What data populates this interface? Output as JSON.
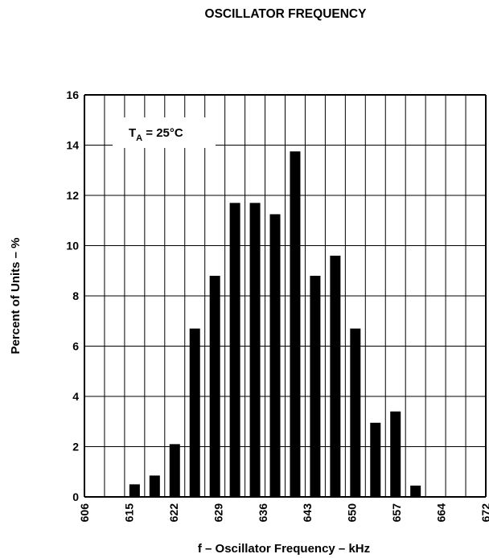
{
  "chart_data": {
    "type": "bar",
    "title": "OSCILLATOR FREQUENCY",
    "xlabel": "f – Oscillator Frequency – kHz",
    "ylabel": "Percent of Units  – %",
    "annotation": {
      "main": "T",
      "sub": "A",
      "rest": " = 25°C"
    },
    "x_tick_labels": [
      "606",
      "615",
      "622",
      "629",
      "636",
      "643",
      "650",
      "657",
      "664",
      "672"
    ],
    "ylim": [
      0,
      16
    ],
    "y_ticks": [
      0,
      2,
      4,
      6,
      8,
      10,
      12,
      14,
      16
    ],
    "grid": true,
    "bin_count": 20,
    "bins": [
      {
        "bin": 1,
        "value": 0
      },
      {
        "bin": 2,
        "value": 0
      },
      {
        "bin": 3,
        "value": 0.5
      },
      {
        "bin": 4,
        "value": 0.85
      },
      {
        "bin": 5,
        "value": 2.1
      },
      {
        "bin": 6,
        "value": 6.7
      },
      {
        "bin": 7,
        "value": 8.8
      },
      {
        "bin": 8,
        "value": 11.7
      },
      {
        "bin": 9,
        "value": 11.7
      },
      {
        "bin": 10,
        "value": 11.25
      },
      {
        "bin": 11,
        "value": 13.75
      },
      {
        "bin": 12,
        "value": 8.8
      },
      {
        "bin": 13,
        "value": 9.6
      },
      {
        "bin": 14,
        "value": 6.7
      },
      {
        "bin": 15,
        "value": 2.95
      },
      {
        "bin": 16,
        "value": 3.4
      },
      {
        "bin": 17,
        "value": 0.45
      },
      {
        "bin": 18,
        "value": 0
      },
      {
        "bin": 19,
        "value": 0
      },
      {
        "bin": 20,
        "value": 0
      }
    ],
    "colors": {
      "bar": "#000000",
      "grid": "#000000",
      "background": "#ffffff"
    }
  }
}
